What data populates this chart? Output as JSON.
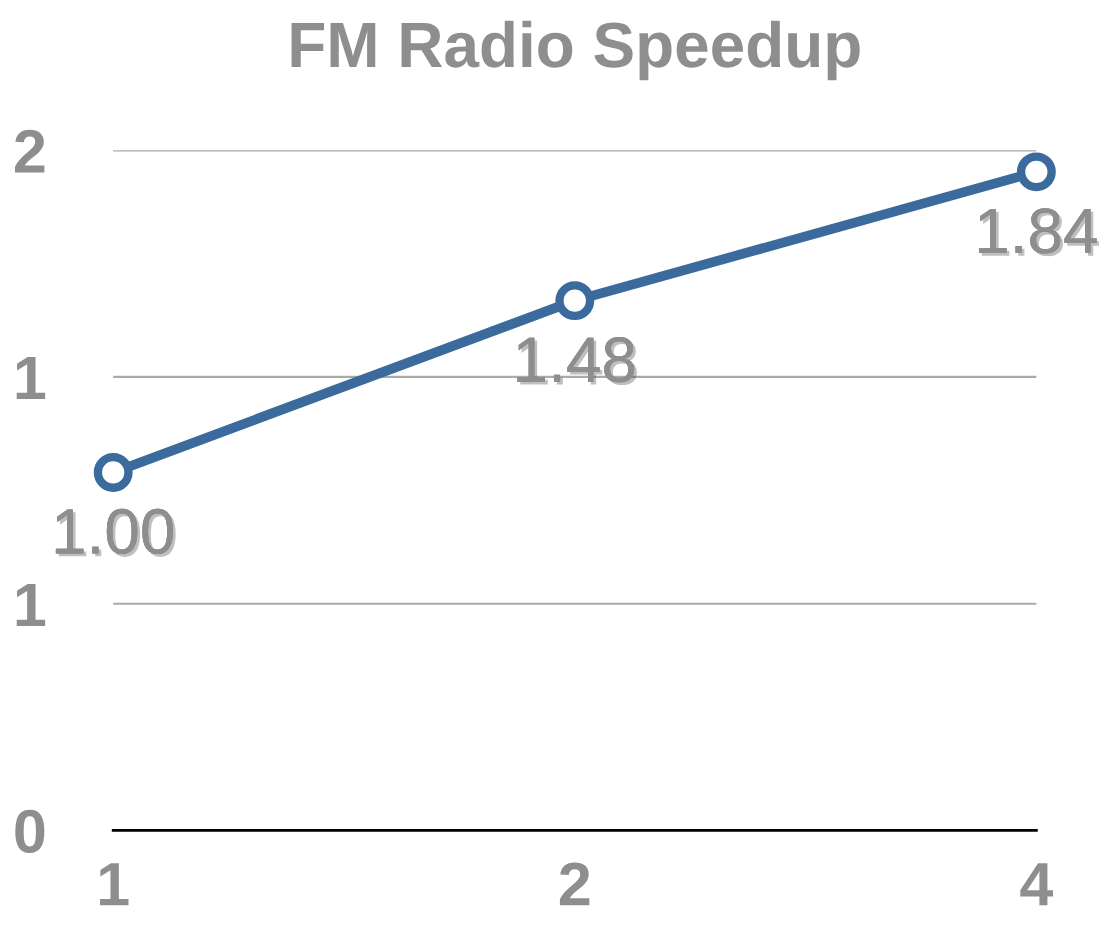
{
  "chart_data": {
    "type": "line",
    "title": "FM Radio Speedup",
    "categories": [
      "1",
      "2",
      "4"
    ],
    "series": [
      {
        "color": "#3b6a9c",
        "values": [
          1.0,
          1.48,
          1.84
        ],
        "value_labels": [
          "1.00",
          "1.48",
          "1.84"
        ]
      }
    ],
    "ylim": [
      0,
      1.9
    ],
    "yticks": [
      0,
      {
        "value": 0.633,
        "label": "1"
      },
      {
        "value": 1.267,
        "label": "1"
      },
      {
        "value": 1.9,
        "label": "2"
      }
    ],
    "grid": "y",
    "marker": "circle",
    "line_style": "solid"
  }
}
